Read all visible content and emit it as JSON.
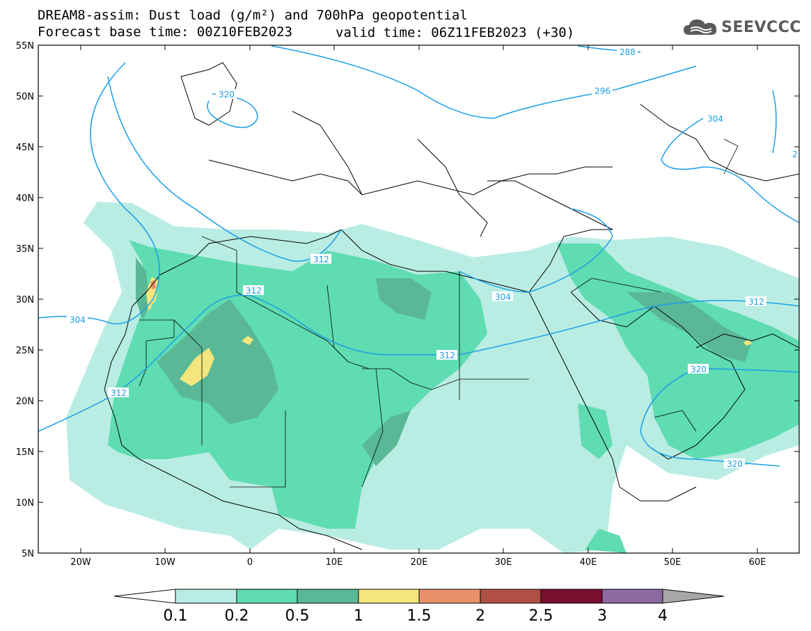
{
  "title": {
    "line1": "DREAM8-assim: Dust load (g/m²) and 700hPa geopotential",
    "line2": "Forecast base time: 00Z10FEB2023",
    "line2_right": "valid time: 06Z11FEB2023 (+30)"
  },
  "logo": {
    "text": "SEEVCCC",
    "icon": "cloud-icon"
  },
  "map": {
    "lon_range": [
      -25,
      65
    ],
    "lat_range": [
      5,
      55
    ],
    "lat_ticks": [
      "55N",
      "50N",
      "45N",
      "40N",
      "35N",
      "30N",
      "25N",
      "20N",
      "15N",
      "10N",
      "5N"
    ],
    "lon_ticks": [
      "20W",
      "10W",
      "0",
      "10E",
      "20E",
      "30E",
      "40E",
      "50E",
      "60E"
    ],
    "contour_color": "#1a9ee8",
    "contour_labels": [
      "288",
      "296",
      "304",
      "312",
      "320",
      "2"
    ]
  },
  "colorbar": {
    "labels": [
      "0.1",
      "0.2",
      "0.5",
      "1",
      "1.5",
      "2",
      "2.5",
      "3",
      "4"
    ],
    "colors": [
      "#ffffff",
      "#b9ede3",
      "#5fdcb1",
      "#5ab897",
      "#f4e67e",
      "#e8906a",
      "#b04f45",
      "#7a0e2e",
      "#8a6aa0",
      "#a8a8a8"
    ]
  }
}
